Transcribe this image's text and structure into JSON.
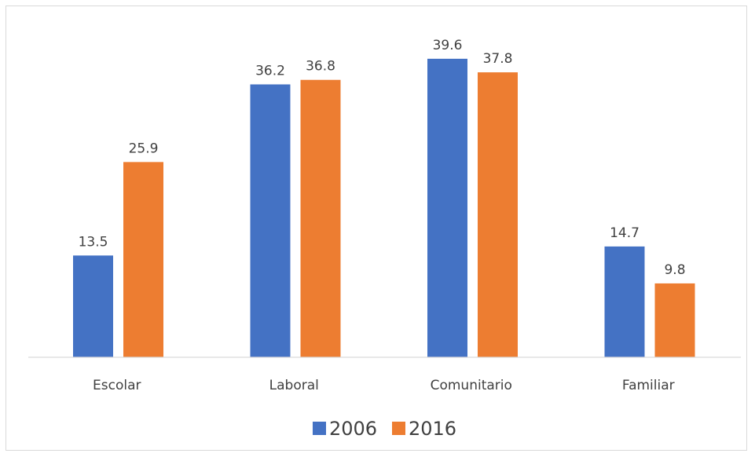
{
  "chart_data": {
    "type": "bar",
    "categories": [
      "Escolar",
      "Laboral",
      "Comunitario",
      "Familiar"
    ],
    "series": [
      {
        "name": "2006",
        "color": "#4472c4",
        "values": [
          13.5,
          36.2,
          39.6,
          14.7
        ],
        "labels": [
          "13.5",
          "36.2",
          "39.6",
          "14.7"
        ]
      },
      {
        "name": "2016",
        "color": "#ed7d31",
        "values": [
          25.9,
          36.8,
          37.8,
          9.8
        ],
        "labels": [
          "25.9",
          "36.8",
          "37.8",
          "9.8"
        ]
      }
    ],
    "title": "",
    "xlabel": "",
    "ylabel": "",
    "ylim": [
      0,
      40
    ],
    "grid": false,
    "legend": "bottom"
  }
}
